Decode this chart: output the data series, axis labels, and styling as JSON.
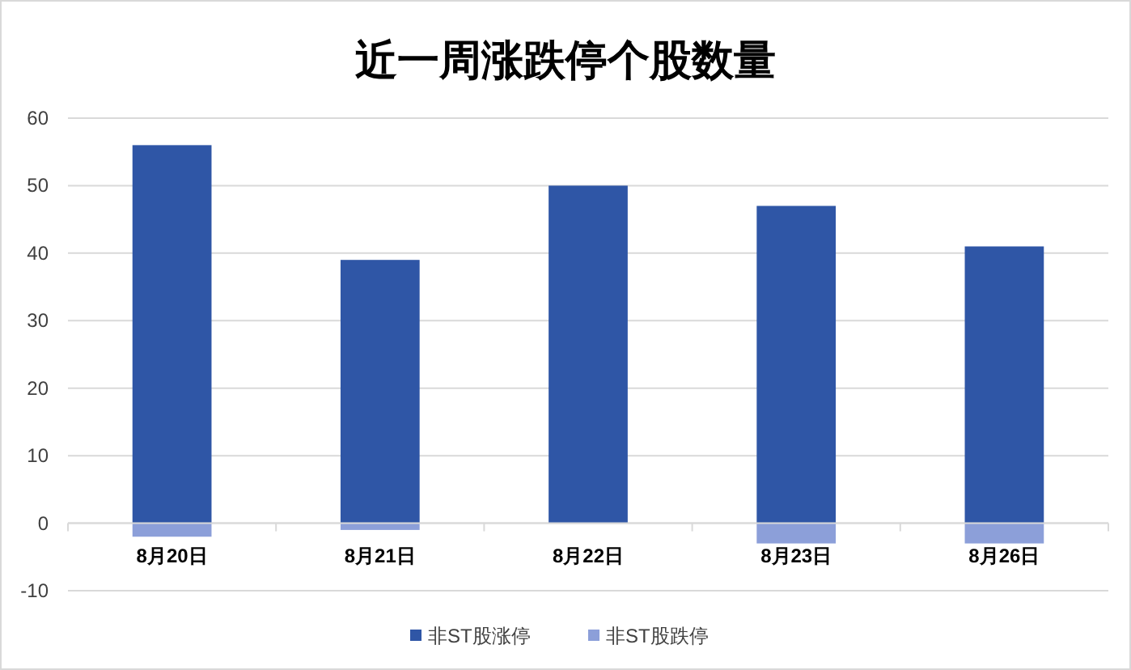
{
  "chart_data": {
    "type": "bar",
    "title": "近一周涨跌停个股数量",
    "stacked": true,
    "categories": [
      "8月20日",
      "8月21日",
      "8月22日",
      "8月23日",
      "8月26日"
    ],
    "series": [
      {
        "name": "非ST股涨停",
        "color": "#2f56a6",
        "values": [
          56,
          39,
          50,
          47,
          41
        ]
      },
      {
        "name": "非ST股跌停",
        "color": "#8c9fd9",
        "values": [
          -2,
          -1,
          0,
          -3,
          -3
        ]
      }
    ],
    "ylim": [
      -10,
      60
    ],
    "yticks": [
      -10,
      0,
      10,
      20,
      30,
      40,
      50,
      60
    ],
    "grid": "y",
    "legend": "bottom"
  }
}
